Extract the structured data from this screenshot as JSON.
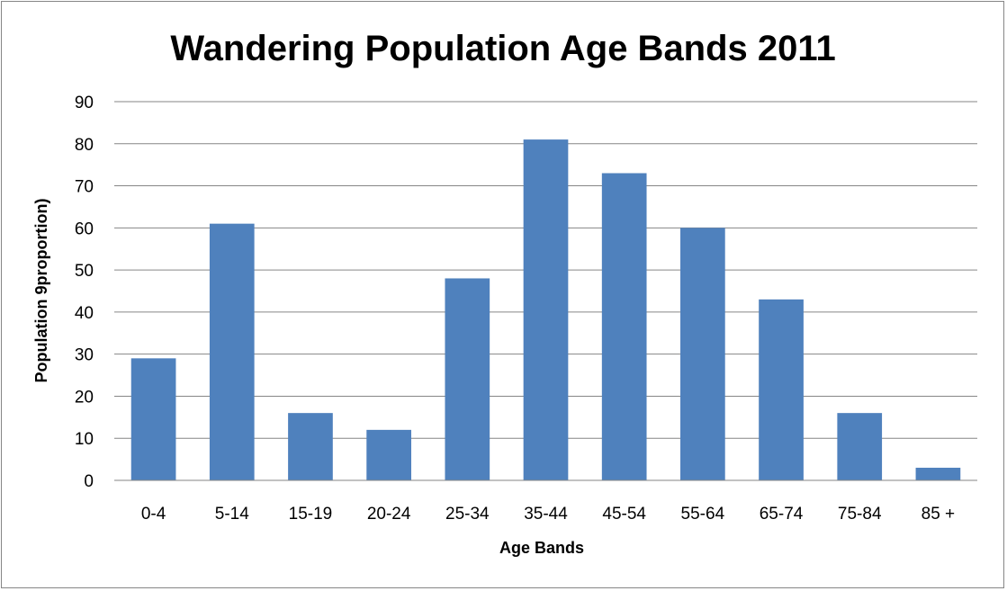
{
  "chart_data": {
    "type": "bar",
    "title": "Wandering Population Age Bands 2011",
    "xlabel": "Age Bands",
    "ylabel": "Population 9proportion)",
    "categories": [
      "0-4",
      "5-14",
      "15-19",
      "20-24",
      "25-34",
      "35-44",
      "45-54",
      "55-64",
      "65-74",
      "75-84",
      "85 +"
    ],
    "values": [
      29,
      61,
      16,
      12,
      48,
      81,
      73,
      60,
      43,
      16,
      3
    ],
    "ylim": [
      0,
      90
    ],
    "yticks": [
      "0",
      "10",
      "20",
      "30",
      "40",
      "50",
      "60",
      "70",
      "80",
      "90"
    ],
    "grid": true,
    "legend": "none",
    "colors": {
      "bar": "#4f81bd",
      "grid": "#868686",
      "axis": "#868686"
    }
  }
}
